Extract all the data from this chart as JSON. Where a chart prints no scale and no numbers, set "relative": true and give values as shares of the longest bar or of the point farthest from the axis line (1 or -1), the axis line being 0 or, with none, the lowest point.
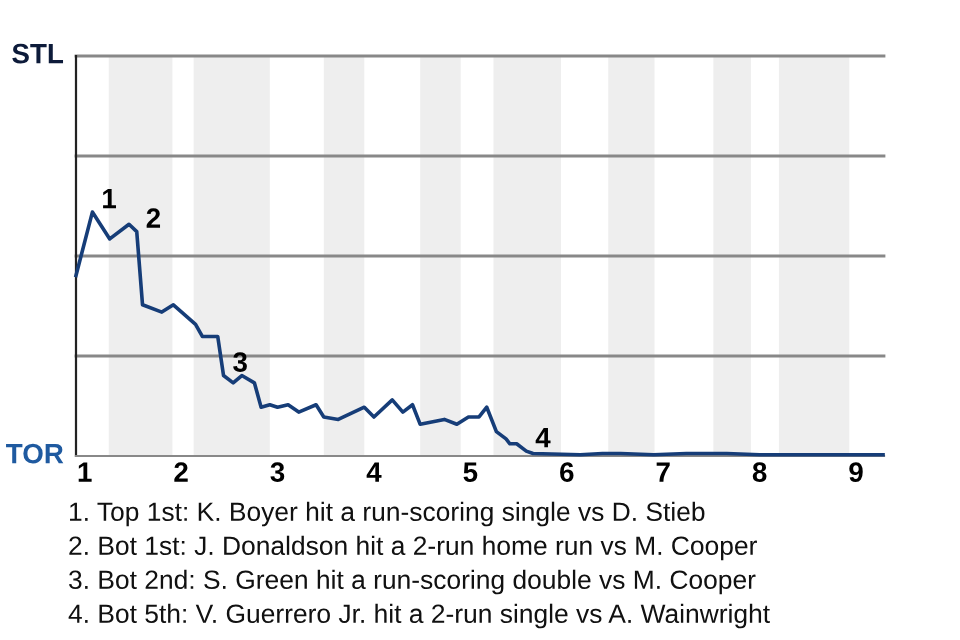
{
  "chart_data": {
    "type": "line",
    "relative": true,
    "x": [
      0.91,
      1.08,
      1.26,
      1.46,
      1.54,
      1.6,
      1.8,
      1.92,
      2.15,
      2.22,
      2.38,
      2.44,
      2.54,
      2.63,
      2.76,
      2.83,
      2.92,
      3.0,
      3.11,
      3.22,
      3.4,
      3.48,
      3.63,
      3.9,
      4.0,
      4.19,
      4.3,
      4.4,
      4.48,
      4.73,
      4.86,
      4.98,
      5.09,
      5.17,
      5.27,
      5.37,
      5.41,
      5.48,
      5.58,
      5.65,
      6.14,
      6.37,
      6.56,
      6.9,
      7.24,
      7.51,
      7.66,
      8.0,
      9.28
    ],
    "series": [
      {
        "color": "#163d78",
        "values": [
          0.74,
          1,
          0.89,
          0.95,
          0.92,
          0.62,
          0.59,
          0.62,
          0.54,
          0.49,
          0.49,
          0.33,
          0.3,
          0.33,
          0.3,
          0.2,
          0.21,
          0.2,
          0.21,
          0.18,
          0.21,
          0.16,
          0.15,
          0.2,
          0.16,
          0.23,
          0.18,
          0.21,
          0.13,
          0.15,
          0.13,
          0.16,
          0.16,
          0.2,
          0.1,
          0.07,
          0.05,
          0.05,
          0.02,
          0.01,
          0.005,
          0.01,
          0.01,
          0.005,
          0.01,
          0.01,
          0.01,
          0.005,
          0.005
        ]
      }
    ],
    "xlim": [
      0.91,
      9.29
    ],
    "xticks": [
      1,
      2,
      3,
      4,
      5,
      6,
      7,
      8,
      9
    ],
    "ref_lines": [
      {
        "axis": "y",
        "value": 0.41,
        "color": "#888888"
      },
      {
        "axis": "y",
        "value": 0.82,
        "color": "#888888"
      },
      {
        "axis": "y",
        "value": 1.23,
        "color": "#888888"
      },
      {
        "axis": "y",
        "value": 1.64,
        "color": "#888888"
      }
    ],
    "bands": [
      {
        "axis": "x",
        "from": 1.25,
        "to": 1.91,
        "color": "#eeeeee"
      },
      {
        "axis": "x",
        "from": 2.13,
        "to": 2.92,
        "color": "#eeeeee"
      },
      {
        "axis": "x",
        "from": 3.48,
        "to": 3.9,
        "color": "#eeeeee"
      },
      {
        "axis": "x",
        "from": 4.48,
        "to": 4.9,
        "color": "#eeeeee"
      },
      {
        "axis": "x",
        "from": 5.24,
        "to": 5.94,
        "color": "#eeeeee"
      },
      {
        "axis": "x",
        "from": 6.43,
        "to": 6.91,
        "color": "#eeeeee"
      },
      {
        "axis": "x",
        "from": 7.52,
        "to": 7.91,
        "color": "#eeeeee"
      },
      {
        "axis": "x",
        "from": 8.2,
        "to": 8.93,
        "color": "#eeeeee"
      }
    ],
    "annotations": [
      "STL",
      "TOR",
      {
        "text": "1",
        "x": 1.08,
        "y": 1
      },
      {
        "text": "2",
        "x": 1.54,
        "y": 0.92
      },
      {
        "text": "3",
        "x": 2.44,
        "y": 0.33
      },
      {
        "text": "4",
        "x": 5.58,
        "y": 0.02
      },
      "1. Top 1st: K. Boyer hit a run-scoring single vs D. Stieb",
      "2. Bot 1st: J. Donaldson hit a 2-run home run vs M. Cooper",
      "3. Bot 2nd: S. Green hit a run-scoring double vs M. Cooper",
      "4. Bot 5th: V. Guerrero Jr. hit a 2-run single vs A. Wainwright"
    ],
    "line_style": "solid",
    "marker": "none"
  }
}
